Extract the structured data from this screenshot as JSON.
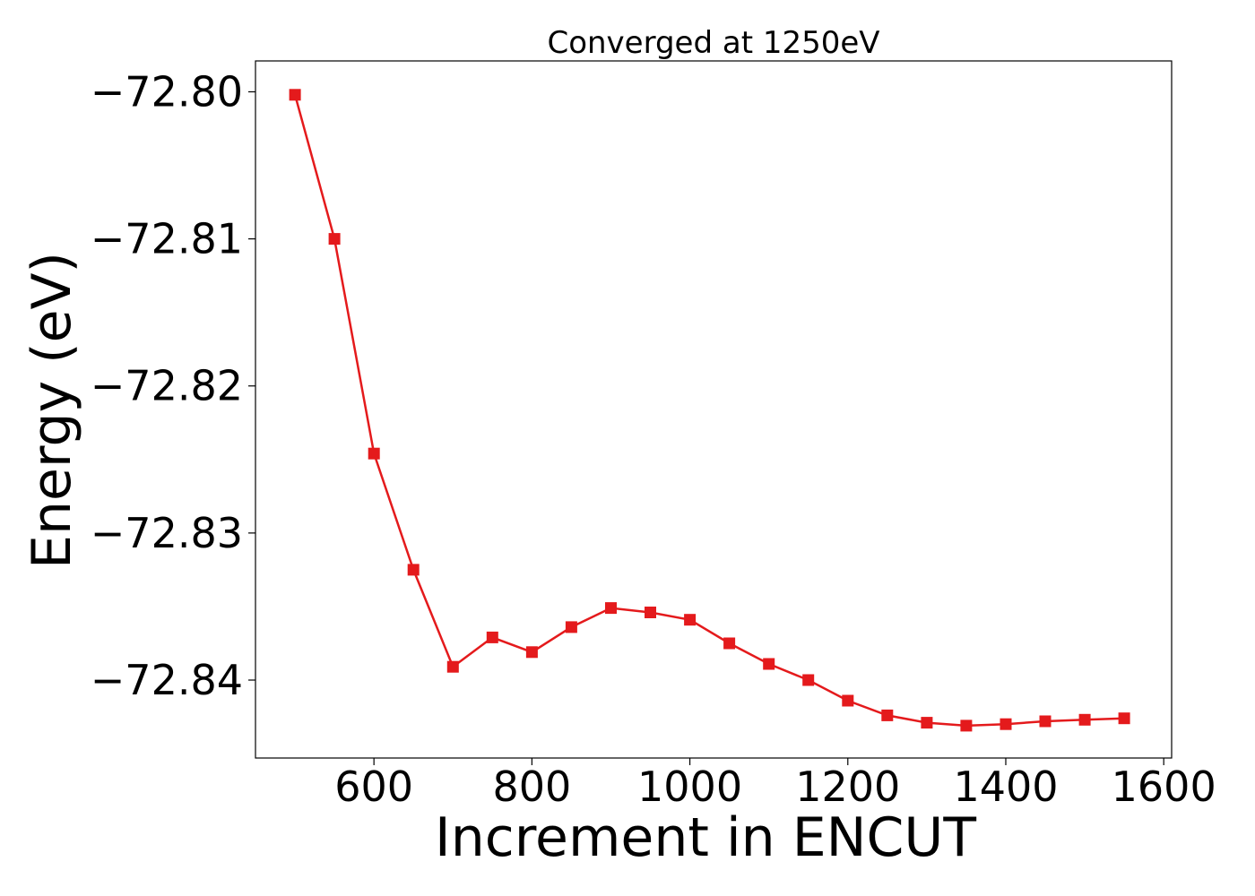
{
  "chart_data": {
    "type": "line",
    "title": "Converged at 1250eV",
    "xlabel": "Increment in ENCUT",
    "ylabel": "Energy (eV)",
    "xlim": [
      450,
      1610
    ],
    "ylim": [
      -72.8453,
      -72.7979
    ],
    "xticks": [
      600,
      800,
      1000,
      1200,
      1400,
      1600
    ],
    "xtick_labels": [
      "600",
      "800",
      "1000",
      "1200",
      "1400",
      "1600"
    ],
    "yticks": [
      -72.8,
      -72.81,
      -72.82,
      -72.83,
      -72.84
    ],
    "ytick_labels": [
      "−72.80",
      "−72.81",
      "−72.82",
      "−72.83",
      "−72.84"
    ],
    "grid": false,
    "series": [
      {
        "color": "#e41a1c",
        "marker": "square",
        "x": [
          500,
          550,
          600,
          650,
          700,
          750,
          800,
          850,
          900,
          950,
          1000,
          1050,
          1100,
          1150,
          1200,
          1250,
          1300,
          1350,
          1400,
          1450,
          1500,
          1550
        ],
        "y": [
          -72.8002,
          -72.81,
          -72.8246,
          -72.8325,
          -72.8391,
          -72.8371,
          -72.8381,
          -72.8364,
          -72.8351,
          -72.8354,
          -72.8359,
          -72.8375,
          -72.8389,
          -72.84,
          -72.8414,
          -72.8424,
          -72.8429,
          -72.8431,
          -72.843,
          -72.8428,
          -72.8427,
          -72.8426
        ]
      }
    ]
  }
}
